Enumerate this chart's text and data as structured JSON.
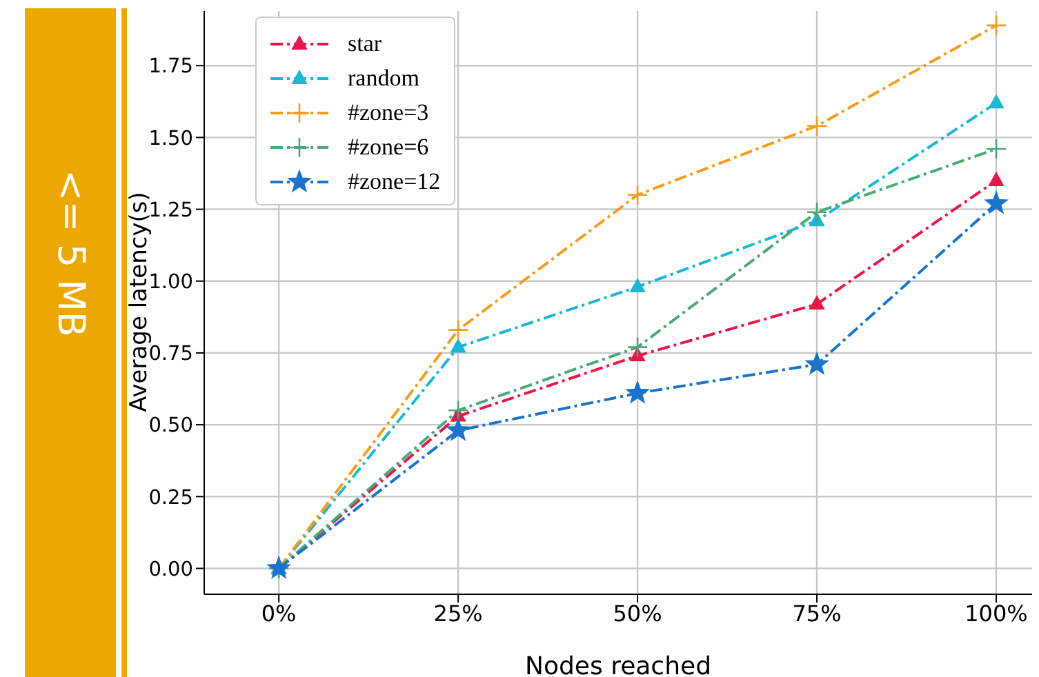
{
  "chart_data": {
    "type": "line",
    "xlabel": "Nodes reached",
    "ylabel": "Average latency(s)",
    "annotations": [
      "<= 5 MB"
    ],
    "x": [
      0,
      25,
      50,
      75,
      100
    ],
    "xlim": [
      -10.4,
      105
    ],
    "xticks": [
      {
        "value": 0,
        "label": "0%"
      },
      {
        "value": 25,
        "label": "25%"
      },
      {
        "value": 50,
        "label": "50%"
      },
      {
        "value": 75,
        "label": "75%"
      },
      {
        "value": 100,
        "label": "100%"
      }
    ],
    "ylim": [
      -0.09,
      1.94
    ],
    "yticks": [
      {
        "value": 0,
        "label": "0.00"
      },
      {
        "value": 0.25,
        "label": "0.25"
      },
      {
        "value": 0.5,
        "label": "0.50"
      },
      {
        "value": 0.75,
        "label": "0.75"
      },
      {
        "value": 1,
        "label": "1.00"
      },
      {
        "value": 1.25,
        "label": "1.25"
      },
      {
        "value": 1.5,
        "label": "1.50"
      },
      {
        "value": 1.75,
        "label": "1.75"
      }
    ],
    "grid": true,
    "legend": "top left",
    "line_style": "dashed",
    "series": [
      {
        "name": "star",
        "color": "#e8174a",
        "marker": "triangle",
        "values": [
          0,
          0.53,
          0.74,
          0.92,
          1.35
        ]
      },
      {
        "name": "random",
        "color": "#1ab8d6",
        "marker": "triangle",
        "values": [
          0,
          0.77,
          0.98,
          1.21,
          1.62
        ]
      },
      {
        "name": "#zone=3",
        "color": "#f89c1c",
        "marker": "cross",
        "values": [
          0,
          0.83,
          1.3,
          1.54,
          1.89
        ]
      },
      {
        "name": "#zone=6",
        "color": "#4aa977",
        "marker": "cross",
        "values": [
          0,
          0.55,
          0.77,
          1.24,
          1.46
        ]
      },
      {
        "name": "#zone=12",
        "color": "#1874cd",
        "marker": "star",
        "values": [
          0,
          0.48,
          0.61,
          0.71,
          1.27
        ]
      }
    ]
  }
}
